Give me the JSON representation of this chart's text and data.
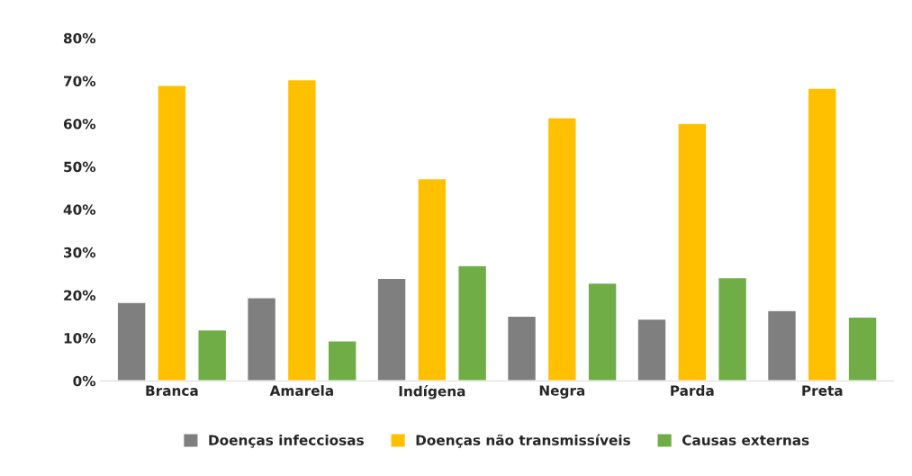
{
  "chart_data": {
    "type": "bar",
    "categories": [
      "Branca",
      "Amarela",
      "Indígena",
      "Negra",
      "Parda",
      "Preta"
    ],
    "series": [
      {
        "name": "Doenças infecciosas",
        "color": "#7f7f7f",
        "values": [
          18.3,
          19.4,
          23.9,
          15.1,
          14.4,
          16.4
        ]
      },
      {
        "name": "Doenças não transmissíveis",
        "color": "#ffc000",
        "values": [
          69.0,
          70.3,
          47.2,
          61.4,
          60.1,
          68.3
        ]
      },
      {
        "name": "Causas externas",
        "color": "#70ad47",
        "values": [
          11.9,
          9.3,
          26.9,
          22.8,
          24.1,
          14.9
        ]
      }
    ],
    "ylim": [
      0,
      80
    ],
    "yticks": [
      {
        "value": 0,
        "label": "0%"
      },
      {
        "value": 10,
        "label": "10%"
      },
      {
        "value": 20,
        "label": "20%"
      },
      {
        "value": 30,
        "label": "30%"
      },
      {
        "value": 40,
        "label": "40%"
      },
      {
        "value": 50,
        "label": "50%"
      },
      {
        "value": 60,
        "label": "60%"
      },
      {
        "value": 70,
        "label": "70%"
      },
      {
        "value": 80,
        "label": "80%"
      }
    ],
    "grid": false,
    "legend": "bottom"
  }
}
